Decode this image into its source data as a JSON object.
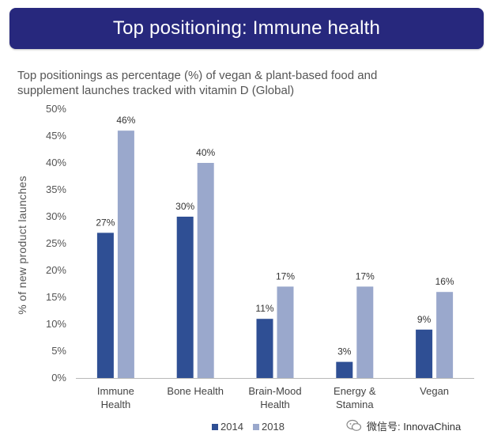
{
  "header": {
    "title": "Top positioning: Immune health"
  },
  "subtitle_lines": [
    "Top positionings as percentage (%) of vegan & plant-based food and",
    "supplement launches tracked with vitamin D (Global)"
  ],
  "watermark": {
    "text": "微信号: InnovaChina",
    "icon": "wechat-icon"
  },
  "chart_data": {
    "type": "bar",
    "categories": [
      [
        "Immune",
        "Health"
      ],
      [
        "Bone Health"
      ],
      [
        "Brain-Mood",
        "Health"
      ],
      [
        "Energy &",
        "Stamina"
      ],
      [
        "Vegan"
      ]
    ],
    "series": [
      {
        "name": "2014",
        "values": [
          27,
          30,
          11,
          3,
          9
        ],
        "labels": [
          "27%",
          "30%",
          "11%",
          "3%",
          "9%"
        ],
        "color": "#2f4f94"
      },
      {
        "name": "2018",
        "values": [
          46,
          40,
          17,
          17,
          16
        ],
        "labels": [
          "46%",
          "40%",
          "17%",
          "17%",
          "16%"
        ],
        "color": "#9aa8cc"
      }
    ],
    "ylabel": "% of new product launches",
    "ylim": [
      0,
      50
    ],
    "yticks": [
      "0%",
      "5%",
      "10%",
      "15%",
      "20%",
      "25%",
      "30%",
      "35%",
      "40%",
      "45%",
      "50%"
    ],
    "grid": false,
    "legend_position": "bottom"
  }
}
